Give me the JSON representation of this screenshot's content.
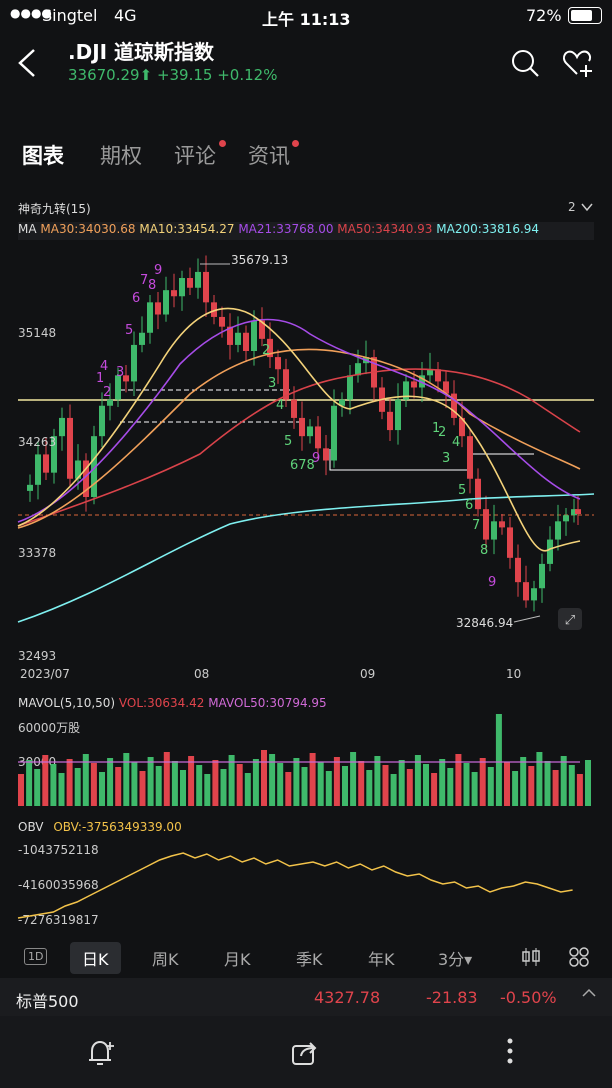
{
  "status": {
    "carrier": "Singtel",
    "network": "4G",
    "time": "上午 11:13",
    "battery": "72%"
  },
  "header": {
    "title": ".DJI 道琼斯指数",
    "price": "33670.29",
    "arrow": "⬆",
    "change": "+39.15",
    "change_pct": "+0.12%"
  },
  "tabs": [
    {
      "label": "图表"
    },
    {
      "label": "期权"
    },
    {
      "label": "评论"
    },
    {
      "label": "资讯"
    }
  ],
  "indicator": {
    "name": "神奇九转(15)",
    "count": "2"
  },
  "ma": {
    "prefix": "MA",
    "ma30": "MA30:34030.68",
    "ma10": "MA10:33454.27",
    "ma21": "MA21:33768.00",
    "ma50": "MA50:34340.93",
    "ma200": "MA200:33816.94"
  },
  "price_axis": [
    "35148",
    "34263",
    "33378",
    "32493"
  ],
  "date_axis": [
    "2023/07",
    "08",
    "09",
    "10"
  ],
  "annotations": {
    "high": "35679.13",
    "low": "32846.94"
  },
  "td_numbers": {
    "purple": [
      "9",
      "7",
      "8",
      "6",
      "5",
      "3",
      "4",
      "1",
      "2",
      "9",
      "9"
    ],
    "green": [
      "2",
      "3",
      "4",
      "5",
      "678",
      "1",
      "2",
      "4",
      "3",
      "5",
      "6",
      "7",
      "8"
    ]
  },
  "volume": {
    "label": "MAVOL(5,10,50)",
    "vol": "VOL:30634.42",
    "mavol50": "MAVOL50:30794.95",
    "axis_top": "60000万股",
    "axis_mid": "30000"
  },
  "obv": {
    "label": "OBV",
    "value": "OBV:-3756349339.00",
    "axis": [
      "-1043752118",
      "-4160035968",
      "-7276319817"
    ]
  },
  "periods": [
    "1D",
    "日K",
    "周K",
    "月K",
    "季K",
    "年K",
    "3分▾"
  ],
  "bottom_quote": {
    "name": "标普500",
    "price": "4327.78",
    "change": "-21.83",
    "pct": "-0.50%"
  },
  "colors": {
    "up": "#3fb96b",
    "down": "#e0444c",
    "ma30": "#f0a05a",
    "ma10": "#f3d27a",
    "ma21": "#a64ce8",
    "ma50": "#d9434a",
    "ma200": "#7ff0f0"
  },
  "chart_data": {
    "type": "candlestick",
    "title": ".DJI",
    "x_labels": [
      "2023/07",
      "08",
      "09",
      "10"
    ],
    "ylim": [
      32493,
      35900
    ],
    "y_ticks": [
      35148,
      34263,
      33378,
      32493
    ],
    "series": [
      {
        "name": "MA30",
        "value": 34030.68
      },
      {
        "name": "MA10",
        "value": 33454.27
      },
      {
        "name": "MA21",
        "value": 33768.0
      },
      {
        "name": "MA50",
        "value": 34340.93
      },
      {
        "name": "MA200",
        "value": 33816.94
      }
    ],
    "high": 35679.13,
    "low": 32846.94,
    "volume": {
      "vol": 30634.42,
      "mavol50": 30794.95
    },
    "obv": -3756349339.0
  }
}
